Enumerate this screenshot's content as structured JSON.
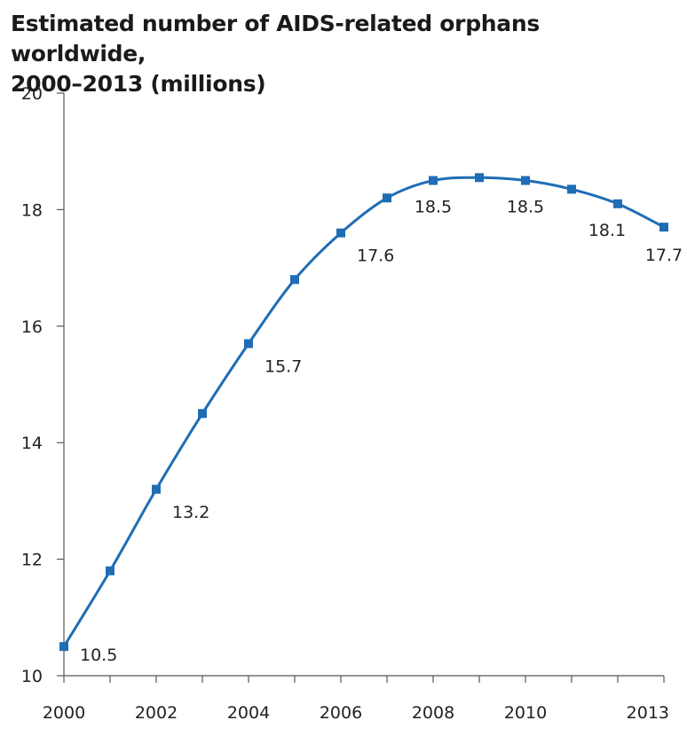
{
  "chart_data": {
    "type": "line",
    "title_line1": "Estimated number of AIDS-related orphans worldwide,",
    "title_line2": "2000–2013 (millions)",
    "xlabel": "",
    "ylabel": "",
    "x": [
      2000,
      2001,
      2002,
      2003,
      2004,
      2005,
      2006,
      2007,
      2008,
      2009,
      2010,
      2011,
      2012,
      2013
    ],
    "series": [
      {
        "values": [
          10.5,
          11.8,
          13.2,
          14.5,
          15.7,
          16.8,
          17.6,
          18.2,
          18.5,
          18.55,
          18.5,
          18.35,
          18.1,
          17.7
        ],
        "color": "#1f6db5"
      }
    ],
    "data_labels": [
      {
        "x": 2000,
        "text": "10.5"
      },
      {
        "x": 2002,
        "text": "13.2"
      },
      {
        "x": 2004,
        "text": "15.7"
      },
      {
        "x": 2006,
        "text": "17.6"
      },
      {
        "x": 2008,
        "text": "18.5"
      },
      {
        "x": 2010,
        "text": "18.5"
      },
      {
        "x": 2012,
        "text": "18.1"
      },
      {
        "x": 2013,
        "text": "17.7"
      }
    ],
    "xlim": [
      2000,
      2013
    ],
    "ylim": [
      10,
      20
    ],
    "x_ticks": [
      2000,
      2001,
      2002,
      2003,
      2004,
      2005,
      2006,
      2007,
      2008,
      2009,
      2010,
      2011,
      2012,
      2013
    ],
    "x_tick_labels": [
      {
        "x": 2000,
        "text": "2000"
      },
      {
        "x": 2002,
        "text": "2002"
      },
      {
        "x": 2004,
        "text": "2004"
      },
      {
        "x": 2006,
        "text": "2006"
      },
      {
        "x": 2008,
        "text": "2008"
      },
      {
        "x": 2010,
        "text": "2010"
      },
      {
        "x": 2013,
        "text": "2013"
      }
    ],
    "y_ticks": [
      {
        "y": 10,
        "text": "10"
      },
      {
        "y": 12,
        "text": "12"
      },
      {
        "y": 14,
        "text": "14"
      },
      {
        "y": 16,
        "text": "16"
      },
      {
        "y": 18,
        "text": "18"
      },
      {
        "y": 20,
        "text": "20"
      }
    ],
    "grid": false,
    "legend": "none",
    "axis_color": "#555555"
  }
}
